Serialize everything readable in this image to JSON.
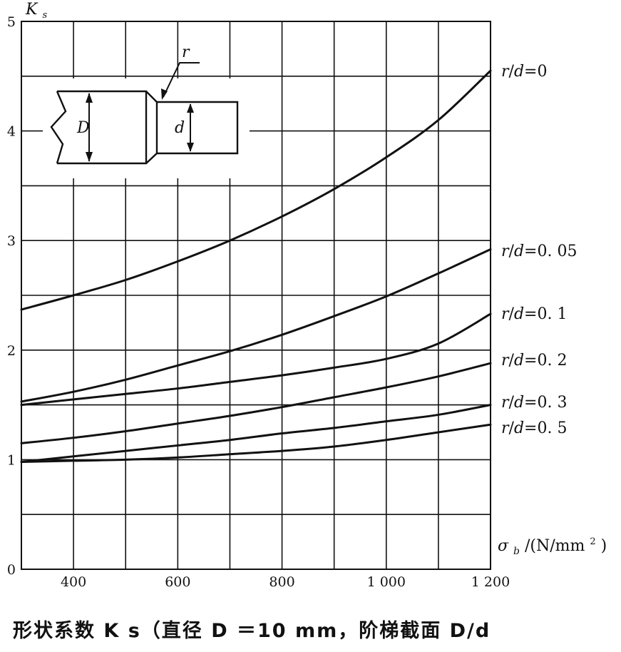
{
  "chart_data": {
    "type": "line",
    "ylabel_main": "K",
    "ylabel_sub": "s",
    "xlabel_main": "σ",
    "xlabel_sub": "b",
    "xlabel_unit": "/(N/mm",
    "xlabel_sup": "2",
    "xlabel_close": ")",
    "xlim": [
      300,
      1200
    ],
    "ylim": [
      0,
      5
    ],
    "grid": true,
    "x_ticks": [
      {
        "value": 400,
        "label": "400"
      },
      {
        "value": 600,
        "label": "600"
      },
      {
        "value": 800,
        "label": "800"
      },
      {
        "value": 1000,
        "label": "1 000"
      },
      {
        "value": 1200,
        "label": "1 200"
      }
    ],
    "y_ticks": [
      {
        "value": 0,
        "label": "0"
      },
      {
        "value": 1,
        "label": "1"
      },
      {
        "value": 2,
        "label": "2"
      },
      {
        "value": 3,
        "label": "3"
      },
      {
        "value": 4,
        "label": "4"
      },
      {
        "value": 5,
        "label": "5"
      }
    ],
    "series": [
      {
        "name": "r/d=0",
        "r_label": "r",
        "d_label": "d",
        "value_label": "=0",
        "x": [
          300,
          400,
          500,
          600,
          700,
          800,
          900,
          1000,
          1100,
          1200
        ],
        "y": [
          2.37,
          2.5,
          2.64,
          2.81,
          3.0,
          3.22,
          3.47,
          3.76,
          4.1,
          4.55
        ]
      },
      {
        "name": "r/d=0.05",
        "r_label": "r",
        "d_label": "d",
        "value_label": "=0. 05",
        "x": [
          300,
          400,
          500,
          600,
          700,
          800,
          900,
          1000,
          1100,
          1200
        ],
        "y": [
          1.53,
          1.62,
          1.73,
          1.86,
          1.99,
          2.14,
          2.31,
          2.49,
          2.7,
          2.92
        ]
      },
      {
        "name": "r/d=0.1",
        "r_label": "r",
        "d_label": "d",
        "value_label": "=0. 1",
        "x": [
          300,
          400,
          500,
          600,
          700,
          800,
          900,
          1000,
          1100,
          1200
        ],
        "y": [
          1.5,
          1.55,
          1.6,
          1.65,
          1.71,
          1.77,
          1.84,
          1.92,
          2.06,
          2.33
        ]
      },
      {
        "name": "r/d=0.2",
        "r_label": "r",
        "d_label": "d",
        "value_label": "=0. 2",
        "x": [
          300,
          400,
          500,
          600,
          700,
          800,
          900,
          1000,
          1100,
          1200
        ],
        "y": [
          1.15,
          1.2,
          1.26,
          1.33,
          1.4,
          1.48,
          1.57,
          1.66,
          1.76,
          1.88
        ]
      },
      {
        "name": "r/d=0.3",
        "r_label": "r",
        "d_label": "d",
        "value_label": "=0. 3",
        "x": [
          300,
          400,
          500,
          600,
          700,
          800,
          900,
          1000,
          1100,
          1200
        ],
        "y": [
          0.98,
          1.03,
          1.08,
          1.13,
          1.18,
          1.24,
          1.29,
          1.35,
          1.41,
          1.5
        ]
      },
      {
        "name": "r/d=0.5",
        "r_label": "r",
        "d_label": "d",
        "value_label": "=0. 5",
        "x": [
          300,
          400,
          500,
          600,
          700,
          800,
          900,
          1000,
          1100,
          1200
        ],
        "y": [
          0.98,
          0.99,
          1.0,
          1.02,
          1.05,
          1.08,
          1.12,
          1.18,
          1.25,
          1.32
        ]
      }
    ],
    "inset": {
      "label_D": "D",
      "label_d": "d",
      "label_r": "r"
    }
  },
  "caption": "形状系数 K s（直径 D ＝10 mm，阶梯截面 D/d"
}
